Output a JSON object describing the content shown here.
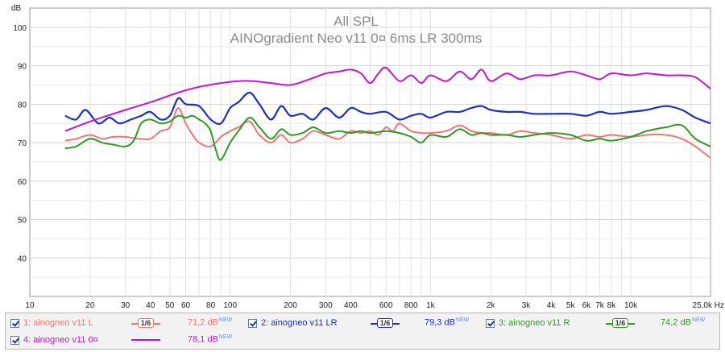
{
  "chart_data": {
    "type": "line",
    "title": "All SPL",
    "subtitle": "AINOgradient Neo v11 0¤ 6ms LR 300ms",
    "ylabel": "dB",
    "xunit": "Hz",
    "xscale": "log",
    "xlim": [
      10,
      25000
    ],
    "ylim": [
      30,
      105
    ],
    "grid": true,
    "ytick_values": [
      40,
      50,
      60,
      70,
      80,
      90,
      100
    ],
    "ytick_labels": [
      "40",
      "50",
      "60",
      "70",
      "80",
      "90",
      "100"
    ],
    "xtick_values": [
      10,
      20,
      30,
      40,
      50,
      60,
      80,
      100,
      200,
      300,
      400,
      600,
      800,
      1000,
      2000,
      3000,
      4000,
      5000,
      6000,
      7000,
      8000,
      10000,
      25000
    ],
    "xtick_labels": [
      "10",
      "20",
      "30",
      "40",
      "50",
      "60",
      "80",
      "100",
      "200",
      "300",
      "400",
      "600",
      "800",
      "1k",
      "2k",
      "3k",
      "4k",
      "5k",
      "6k",
      "7k",
      "8k",
      "10k",
      "25,0k Hz"
    ],
    "series": [
      {
        "name": "1: ainogneo v11 L",
        "color": "#f07575",
        "x": [
          15,
          17,
          20,
          23,
          26,
          30,
          35,
          40,
          45,
          50,
          55,
          60,
          65,
          70,
          80,
          90,
          100,
          110,
          125,
          140,
          160,
          180,
          200,
          230,
          260,
          300,
          350,
          400,
          450,
          500,
          550,
          600,
          650,
          700,
          800,
          900,
          1000,
          1200,
          1400,
          1600,
          1800,
          2000,
          2400,
          2800,
          3300,
          4000,
          5000,
          6000,
          7000,
          8000,
          10000,
          12000,
          15000,
          18000,
          21000,
          25000
        ],
        "values": [
          70.5,
          71,
          72,
          71,
          71.5,
          71.5,
          71,
          71,
          73,
          74,
          79,
          75,
          72,
          70,
          69,
          71.5,
          73,
          74,
          75.5,
          72,
          70,
          72,
          70,
          71,
          73,
          72,
          71,
          73,
          72.5,
          73,
          72,
          74,
          73,
          75,
          73,
          72.5,
          72.5,
          73,
          74.5,
          73,
          72.5,
          72.5,
          72,
          73,
          72.5,
          72,
          71,
          72,
          71.5,
          72,
          71.5,
          72,
          72,
          71,
          69,
          66
        ]
      },
      {
        "name": "2: ainogneo v11 LR",
        "color": "#1f2fbf",
        "x": [
          15,
          17,
          19,
          22,
          25,
          28,
          32,
          36,
          40,
          45,
          50,
          55,
          60,
          70,
          80,
          90,
          100,
          110,
          125,
          140,
          160,
          180,
          200,
          230,
          260,
          300,
          350,
          400,
          450,
          500,
          600,
          700,
          800,
          900,
          1000,
          1200,
          1400,
          1600,
          1800,
          2000,
          2400,
          2800,
          3300,
          4000,
          5000,
          6000,
          7000,
          8000,
          10000,
          12000,
          15000,
          18000,
          21000,
          25000
        ],
        "values": [
          77,
          76,
          78.5,
          75,
          76.5,
          75,
          76,
          77,
          78,
          76,
          77,
          81.5,
          80,
          79.5,
          76,
          75,
          79,
          80.5,
          83,
          80,
          76,
          79.5,
          77,
          77.5,
          76,
          79,
          76.5,
          79,
          78,
          77.5,
          78,
          76,
          77,
          77.5,
          76.5,
          78,
          78,
          79,
          79.5,
          78.5,
          78,
          78,
          77.5,
          77.5,
          77.5,
          77,
          78,
          77.5,
          78,
          78.5,
          79.5,
          78.5,
          76.5,
          75
        ]
      },
      {
        "name": "3: ainogneo v11 R",
        "color": "#2e9a24",
        "x": [
          15,
          17,
          20,
          23,
          26,
          30,
          33,
          36,
          40,
          45,
          50,
          55,
          60,
          65,
          70,
          75,
          80,
          85,
          90,
          100,
          110,
          125,
          140,
          160,
          180,
          200,
          230,
          260,
          300,
          350,
          400,
          450,
          500,
          600,
          700,
          800,
          900,
          1000,
          1200,
          1400,
          1600,
          1800,
          2000,
          2400,
          2800,
          3300,
          4000,
          5000,
          6000,
          7000,
          8000,
          10000,
          12000,
          15000,
          18000,
          21000,
          25000
        ],
        "values": [
          68.5,
          69,
          71,
          70,
          69.5,
          69,
          70.5,
          75,
          76,
          75,
          75.5,
          77,
          76.5,
          77,
          76,
          75,
          73,
          68,
          65.5,
          70,
          73,
          76.5,
          74,
          71,
          73.5,
          72,
          72.5,
          74,
          72.5,
          73,
          72.5,
          73,
          72.5,
          73,
          72.5,
          71.5,
          70,
          72,
          71.5,
          73.5,
          72,
          72.5,
          72,
          72,
          71.5,
          72,
          72.5,
          72,
          70.5,
          71,
          70.5,
          71.5,
          73,
          74,
          74.5,
          71,
          69
        ]
      },
      {
        "name": "4: ainogneo v11 0¤",
        "color": "#c317c9",
        "x": [
          15,
          20,
          30,
          40,
          55,
          70,
          90,
          110,
          130,
          160,
          200,
          250,
          300,
          350,
          400,
          450,
          500,
          550,
          600,
          700,
          800,
          900,
          1000,
          1200,
          1400,
          1600,
          1800,
          2000,
          2400,
          2800,
          3300,
          4000,
          5000,
          6000,
          7000,
          8000,
          10000,
          12000,
          15000,
          18000,
          21000,
          25000
        ],
        "values": [
          73,
          75.5,
          78.5,
          80.5,
          83,
          84.5,
          85.5,
          86,
          86,
          85.5,
          85,
          86.5,
          88,
          88.5,
          89,
          88,
          85.5,
          88,
          89.5,
          86,
          87.5,
          85.5,
          87.5,
          86,
          88.5,
          86.5,
          89,
          86,
          88,
          86.5,
          87.5,
          87.5,
          88.5,
          87.5,
          86.5,
          88,
          87.5,
          88,
          87.5,
          87.5,
          87,
          84
        ]
      }
    ]
  },
  "legend": {
    "new_label": "NEW",
    "entries": [
      {
        "label": "1: ainogneo v11 L",
        "smoothing": "1/6",
        "value_text": "71,2 dB",
        "color": "#f07575"
      },
      {
        "label": "2: ainogneo v11 LR",
        "smoothing": "1/6",
        "value_text": "79,3 dB",
        "color": "#1f2fbf"
      },
      {
        "label": "3: ainogneo v11 R",
        "smoothing": "1/6",
        "value_text": "74,2 dB",
        "color": "#2e9a24"
      },
      {
        "label": "4: ainogneo v11 0¤",
        "smoothing": "",
        "value_text": "78,1 dB",
        "color": "#c317c9"
      }
    ]
  }
}
